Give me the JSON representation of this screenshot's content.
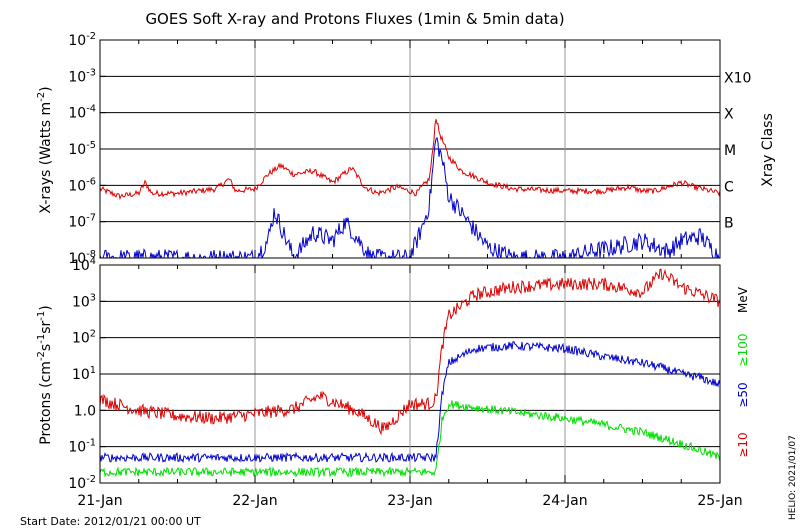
{
  "title": "GOES Soft X-ray and Protons Fluxes   (1min & 5min data)",
  "start_date": "Start Date: 2012/01/21 00:00 UT",
  "credit": "HELIO: 2021/01/07",
  "colors": {
    "red": "#dd0000",
    "blue": "#0000cc",
    "green": "#00dd00",
    "grid": "#000000",
    "vgrid": "#999999"
  },
  "chart_data": [
    {
      "type": "line",
      "panel": "xrays",
      "title": "GOES Soft X-ray and Protons Fluxes   (1min & 5min data)",
      "ylabel": "X-rays (Watts m-2)",
      "yscale": "log",
      "ylim": [
        1e-08,
        0.01
      ],
      "ytick_labels": [
        {
          "v": 0.01,
          "m": "10",
          "e": "-2"
        },
        {
          "v": 0.001,
          "m": "10",
          "e": "-3"
        },
        {
          "v": 0.0001,
          "m": "10",
          "e": "-4"
        },
        {
          "v": 1e-05,
          "m": "10",
          "e": "-5"
        },
        {
          "v": 1e-06,
          "m": "10",
          "e": "-6"
        },
        {
          "v": 1e-07,
          "m": "10",
          "e": "-7"
        },
        {
          "v": 1e-08,
          "m": "10",
          "e": "-8"
        }
      ],
      "right_axis_label": "Xray Class",
      "class_labels": [
        {
          "label": "X10",
          "v": 0.001
        },
        {
          "label": "X",
          "v": 0.0001
        },
        {
          "label": "M",
          "v": 1e-05
        },
        {
          "label": "C",
          "v": 1e-06
        },
        {
          "label": "B",
          "v": 1e-07
        }
      ],
      "x_dates": [
        "2012-01-21",
        "2012-01-22",
        "2012-01-23",
        "2012-01-24",
        "2012-01-25"
      ],
      "x_tick_labels": [
        "21-Jan",
        "22-Jan",
        "23-Jan",
        "24-Jan",
        "25-Jan"
      ],
      "series": [
        {
          "color": "red",
          "x": [
            "2012-01-21 00:00",
            "2012-01-21 03:00",
            "2012-01-21 06:00",
            "2012-01-21 07:00",
            "2012-01-21 08:00",
            "2012-01-21 12:00",
            "2012-01-21 18:00",
            "2012-01-21 20:00",
            "2012-01-21 21:00",
            "2012-01-22 00:00",
            "2012-01-22 02:00",
            "2012-01-22 04:00",
            "2012-01-22 06:00",
            "2012-01-22 09:00",
            "2012-01-22 12:00",
            "2012-01-22 15:00",
            "2012-01-22 17:00",
            "2012-01-22 19:00",
            "2012-01-22 22:00",
            "2012-01-23 01:00",
            "2012-01-23 03:00",
            "2012-01-23 03:30",
            "2012-01-23 04:00",
            "2012-01-23 04:30",
            "2012-01-23 06:00",
            "2012-01-23 08:00",
            "2012-01-23 12:00",
            "2012-01-23 16:00",
            "2012-01-24 00:00",
            "2012-01-24 06:00",
            "2012-01-24 10:00",
            "2012-01-24 12:00",
            "2012-01-24 14:00",
            "2012-01-24 18:00",
            "2012-01-24 20:00",
            "2012-01-25 00:00"
          ],
          "y": [
            8e-07,
            5e-07,
            6e-07,
            1.2e-06,
            6e-07,
            6e-07,
            8e-07,
            1.5e-06,
            7e-07,
            8e-07,
            2e-06,
            3.5e-06,
            2e-06,
            2.5e-06,
            1.2e-06,
            3e-06,
            9e-07,
            6e-07,
            9e-07,
            6e-07,
            1.5e-06,
            8e-06,
            8e-05,
            3e-05,
            6e-06,
            2.5e-06,
            1.2e-06,
            8e-07,
            7e-07,
            7e-07,
            9e-07,
            7e-07,
            7e-07,
            1.2e-06,
            9e-07,
            6e-07
          ]
        },
        {
          "color": "blue",
          "x": [
            "2012-01-21 00:00",
            "2012-01-21 06:00",
            "2012-01-21 12:00",
            "2012-01-21 18:00",
            "2012-01-22 00:00",
            "2012-01-22 02:00",
            "2012-01-22 03:00",
            "2012-01-22 06:00",
            "2012-01-22 09:00",
            "2012-01-22 12:00",
            "2012-01-22 14:00",
            "2012-01-22 18:00",
            "2012-01-23 00:00",
            "2012-01-23 02:00",
            "2012-01-23 03:00",
            "2012-01-23 04:00",
            "2012-01-23 05:00",
            "2012-01-23 06:00",
            "2012-01-23 09:00",
            "2012-01-23 12:00",
            "2012-01-23 16:00",
            "2012-01-24 00:00",
            "2012-01-24 04:00",
            "2012-01-24 08:00",
            "2012-01-24 12:00",
            "2012-01-24 16:00",
            "2012-01-24 18:00",
            "2012-01-24 21:00",
            "2012-01-25 00:00"
          ],
          "y": [
            1e-08,
            1e-08,
            1e-08,
            1e-08,
            1e-08,
            3e-08,
            2e-07,
            1e-08,
            5e-08,
            3e-08,
            1e-07,
            1e-08,
            1e-08,
            8e-08,
            3e-07,
            2e-05,
            5e-06,
            5e-07,
            1e-07,
            2e-08,
            1e-08,
            1e-08,
            1.5e-08,
            2e-08,
            3e-08,
            1.5e-08,
            3e-08,
            4e-08,
            1e-08
          ]
        }
      ]
    },
    {
      "type": "line",
      "panel": "protons",
      "ylabel": "Protons (cm-2s-1sr-1)",
      "yscale": "log",
      "ylim": [
        0.01,
        10000
      ],
      "ytick_labels": [
        {
          "v": 10000,
          "m": "10",
          "e": "4"
        },
        {
          "v": 1000,
          "m": "10",
          "e": "3"
        },
        {
          "v": 100,
          "m": "10",
          "e": "2"
        },
        {
          "v": 10,
          "m": "10",
          "e": "1"
        },
        {
          "v": 1,
          "m": "1.0",
          "e": ""
        },
        {
          "v": 0.1,
          "m": "10",
          "e": "-1"
        },
        {
          "v": 0.01,
          "m": "10",
          "e": "-2"
        }
      ],
      "threshold": 10,
      "energy_labels": [
        "MeV",
        "≥100",
        "≥50",
        "≥10"
      ],
      "x_dates": [
        "2012-01-21",
        "2012-01-22",
        "2012-01-23",
        "2012-01-24",
        "2012-01-25"
      ],
      "x_tick_labels": [
        "21-Jan",
        "22-Jan",
        "23-Jan",
        "24-Jan",
        "25-Jan"
      ],
      "series": [
        {
          "name": "≥10",
          "color": "red",
          "x": [
            "2012-01-21 00:00",
            "2012-01-21 06:00",
            "2012-01-21 12:00",
            "2012-01-21 18:00",
            "2012-01-22 00:00",
            "2012-01-22 06:00",
            "2012-01-22 10:00",
            "2012-01-22 16:00",
            "2012-01-22 20:00",
            "2012-01-23 00:00",
            "2012-01-23 03:00",
            "2012-01-23 04:00",
            "2012-01-23 05:00",
            "2012-01-23 06:00",
            "2012-01-23 10:00",
            "2012-01-23 16:00",
            "2012-01-24 00:00",
            "2012-01-24 06:00",
            "2012-01-24 12:00",
            "2012-01-24 15:00",
            "2012-01-24 18:00",
            "2012-01-25 00:00"
          ],
          "y": [
            2,
            1,
            0.7,
            0.6,
            0.8,
            1.1,
            2.5,
            0.9,
            0.3,
            1.5,
            1.5,
            2,
            60,
            400,
            1500,
            2500,
            3000,
            3000,
            1800,
            6000,
            2500,
            1000
          ]
        },
        {
          "name": "≥50",
          "color": "blue",
          "x": [
            "2012-01-21 00:00",
            "2012-01-22 00:00",
            "2012-01-23 00:00",
            "2012-01-23 04:00",
            "2012-01-23 05:00",
            "2012-01-23 06:00",
            "2012-01-23 10:00",
            "2012-01-23 16:00",
            "2012-01-24 00:00",
            "2012-01-24 06:00",
            "2012-01-24 12:00",
            "2012-01-24 15:00",
            "2012-01-24 18:00",
            "2012-01-24 21:00",
            "2012-01-25 00:00"
          ],
          "y": [
            0.05,
            0.05,
            0.05,
            0.05,
            3,
            20,
            50,
            60,
            50,
            30,
            20,
            15,
            10,
            8,
            5
          ]
        },
        {
          "name": "≥100",
          "color": "green",
          "x": [
            "2012-01-21 00:00",
            "2012-01-22 00:00",
            "2012-01-23 00:00",
            "2012-01-23 04:00",
            "2012-01-23 05:00",
            "2012-01-23 06:00",
            "2012-01-23 10:00",
            "2012-01-23 16:00",
            "2012-01-24 00:00",
            "2012-01-24 06:00",
            "2012-01-24 12:00",
            "2012-01-24 18:00",
            "2012-01-25 00:00"
          ],
          "y": [
            0.02,
            0.02,
            0.02,
            0.02,
            0.6,
            1.5,
            1.2,
            0.9,
            0.6,
            0.4,
            0.25,
            0.12,
            0.05
          ]
        }
      ]
    }
  ]
}
